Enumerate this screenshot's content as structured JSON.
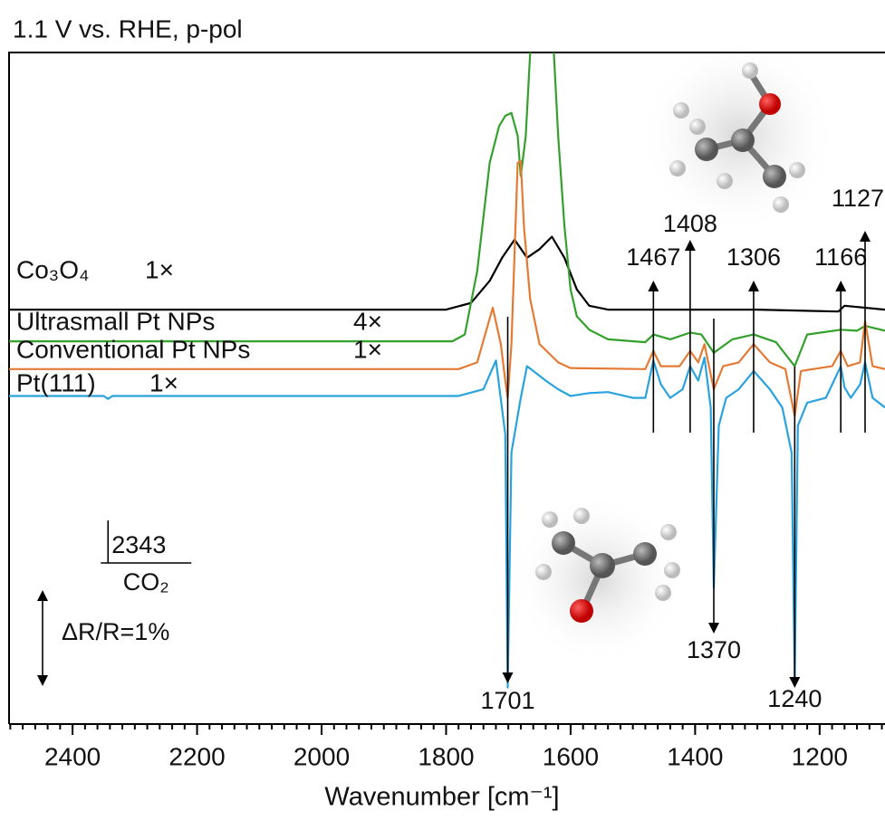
{
  "chart_data": {
    "type": "line",
    "title": "1.1 V vs. RHE, p-pol",
    "x_label": "Wavenumber [cm⁻¹]",
    "xlim": [
      2502,
      1095
    ],
    "ylim": [
      0,
      7
    ],
    "xticks": [
      2400,
      2200,
      2000,
      1800,
      1600,
      1400,
      1200
    ],
    "xminorticks": [
      2500,
      2480,
      2460,
      2440,
      2420,
      2400,
      2380,
      2360,
      2340,
      2320,
      2300,
      2280,
      2260,
      2240,
      2220,
      2200,
      2180,
      2160,
      2140,
      2120,
      2100,
      2080,
      2060,
      2040,
      2020,
      2000,
      1980,
      1960,
      1940,
      1920,
      1900,
      1880,
      1860,
      1840,
      1820,
      1800,
      1780,
      1760,
      1740,
      1720,
      1700,
      1680,
      1660,
      1640,
      1620,
      1600,
      1580,
      1560,
      1540,
      1520,
      1500,
      1480,
      1460,
      1440,
      1420,
      1400,
      1380,
      1360,
      1340,
      1320,
      1300,
      1280,
      1260,
      1240,
      1220,
      1200,
      1180,
      1160,
      1140,
      1120,
      1100
    ],
    "series": [
      {
        "name": "Co₃O₄",
        "scale": "1×",
        "color": "#000000",
        "x": [
          2502,
          1800,
          1760,
          1730,
          1710,
          1690,
          1670,
          1650,
          1630,
          1610,
          1590,
          1570,
          1540,
          1300,
          1170,
          1160,
          1095
        ],
        "values": [
          4.32,
          4.32,
          4.39,
          4.62,
          4.86,
          5.05,
          4.86,
          4.95,
          5.08,
          4.86,
          4.53,
          4.36,
          4.32,
          4.32,
          4.3,
          4.36,
          4.32
        ]
      },
      {
        "name": "Ultrasmall Pt NPs",
        "scale": "4×",
        "color": "#33a02c",
        "x": [
          2502,
          1790,
          1770,
          1750,
          1730,
          1715,
          1705,
          1695,
          1685,
          1680,
          1672,
          1665,
          1662,
          1630,
          1627,
          1620,
          1610,
          1600,
          1590,
          1570,
          1540,
          1480,
          1467,
          1440,
          1408,
          1390,
          1370,
          1340,
          1306,
          1270,
          1240,
          1220,
          1166,
          1140,
          1127,
          1095
        ],
        "values": [
          3.99,
          3.99,
          4.06,
          4.72,
          5.85,
          6.23,
          6.34,
          6.37,
          6.13,
          5.71,
          6.13,
          7.0,
          7.3,
          7.3,
          7.0,
          6.13,
          5.19,
          4.53,
          4.25,
          4.11,
          4.01,
          3.98,
          4.06,
          4.01,
          4.08,
          4.06,
          3.87,
          4.01,
          4.06,
          3.98,
          3.73,
          4.06,
          4.11,
          4.1,
          4.15,
          4.1
        ]
      },
      {
        "name": "Conventional Pt NPs",
        "scale": "1×",
        "color": "#e37b35",
        "x": [
          2502,
          1780,
          1750,
          1725,
          1712,
          1705,
          1701,
          1695,
          1685,
          1680,
          1675,
          1665,
          1650,
          1620,
          1600,
          1480,
          1467,
          1455,
          1425,
          1408,
          1395,
          1385,
          1370,
          1355,
          1330,
          1306,
          1280,
          1255,
          1240,
          1230,
          1180,
          1166,
          1155,
          1135,
          1127,
          1115,
          1095
        ],
        "values": [
          3.7,
          3.7,
          3.77,
          4.34,
          3.96,
          3.58,
          3.4,
          3.96,
          5.85,
          5.87,
          5.19,
          4.43,
          3.96,
          3.77,
          3.71,
          3.7,
          3.89,
          3.73,
          3.73,
          3.89,
          3.77,
          3.96,
          3.49,
          3.73,
          3.77,
          3.96,
          3.77,
          3.7,
          3.21,
          3.68,
          3.73,
          3.89,
          3.73,
          3.77,
          4.2,
          3.73,
          3.7
        ]
      },
      {
        "name": "Pt(111)",
        "scale": "1×",
        "color": "#29a3dd",
        "x": [
          2502,
          2350,
          2343,
          2336,
          1780,
          1740,
          1720,
          1705,
          1701,
          1695,
          1680,
          1670,
          1660,
          1640,
          1620,
          1600,
          1570,
          1540,
          1500,
          1480,
          1467,
          1455,
          1440,
          1420,
          1408,
          1395,
          1385,
          1375,
          1370,
          1362,
          1350,
          1330,
          1306,
          1280,
          1260,
          1245,
          1240,
          1235,
          1220,
          1190,
          1166,
          1160,
          1150,
          1135,
          1127,
          1115,
          1095
        ],
        "values": [
          3.42,
          3.42,
          3.39,
          3.42,
          3.42,
          3.49,
          3.79,
          3.02,
          0.38,
          2.83,
          3.4,
          3.73,
          3.68,
          3.58,
          3.49,
          3.42,
          3.45,
          3.46,
          3.4,
          3.4,
          3.79,
          3.54,
          3.4,
          3.49,
          3.73,
          3.58,
          3.82,
          3.3,
          1.42,
          3.11,
          3.4,
          3.49,
          3.68,
          3.49,
          3.3,
          2.83,
          0.47,
          3.11,
          3.35,
          3.4,
          3.73,
          3.51,
          3.4,
          3.54,
          3.77,
          3.4,
          3.3
        ]
      }
    ],
    "peaks_up": [
      1467,
      1408,
      1306,
      1166,
      1127
    ],
    "peaks_down": [
      1701,
      1370,
      1240
    ],
    "co2_band": {
      "x": 2343,
      "label": "CO₂"
    },
    "scale_bar": {
      "value": 1,
      "label": "ΔR/R=1%"
    }
  }
}
